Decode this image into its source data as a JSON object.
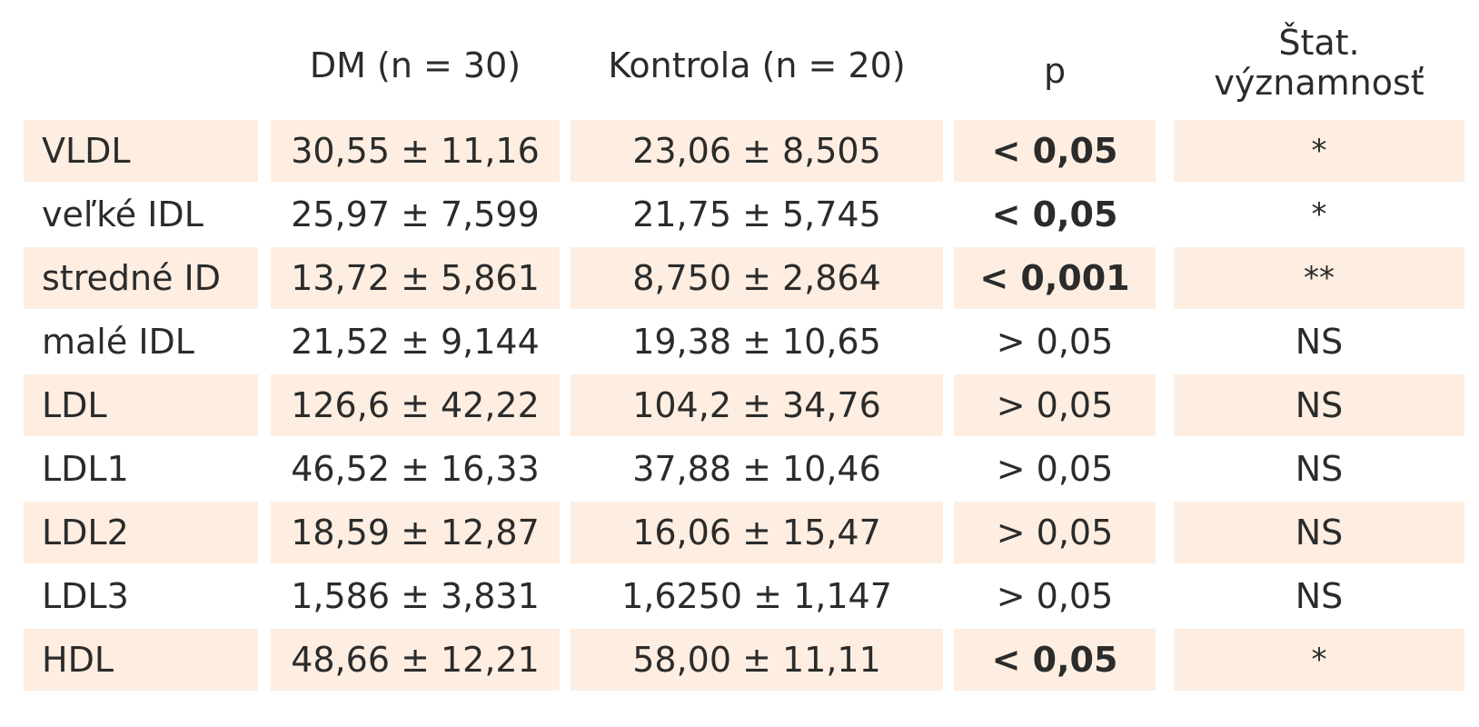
{
  "headers": {
    "label": "",
    "dm": "DM (n = 30)",
    "kontrola": "Kontrola (n = 20)",
    "p": "p",
    "stat_line1": "Štat.",
    "stat_line2": "významnosť"
  },
  "colors": {
    "row_shade": "#fdeee1",
    "text": "#2b2b2b"
  },
  "rows": [
    {
      "label": "VLDL",
      "dm": "30,55 ± 11,16",
      "kontrola": "23,06 ± 8,505",
      "p": "< 0,05",
      "p_bold": true,
      "stat": "*",
      "shaded": true
    },
    {
      "label": "veľké IDL",
      "dm": "25,97 ± 7,599",
      "kontrola": "21,75 ± 5,745",
      "p": "< 0,05",
      "p_bold": true,
      "stat": "*",
      "shaded": false
    },
    {
      "label": "stredné ID",
      "dm": "13,72 ± 5,861",
      "kontrola": "8,750 ± 2,864",
      "p": "< 0,001",
      "p_bold": true,
      "stat": "**",
      "shaded": true
    },
    {
      "label": "malé IDL",
      "dm": "21,52 ± 9,144",
      "kontrola": "19,38 ± 10,65",
      "p": "> 0,05",
      "p_bold": false,
      "stat": "NS",
      "shaded": false
    },
    {
      "label": "LDL",
      "dm": "126,6 ± 42,22",
      "kontrola": "104,2 ± 34,76",
      "p": "> 0,05",
      "p_bold": false,
      "stat": "NS",
      "shaded": true
    },
    {
      "label": "LDL1",
      "dm": "46,52 ± 16,33",
      "kontrola": "37,88 ± 10,46",
      "p": "> 0,05",
      "p_bold": false,
      "stat": "NS",
      "shaded": false
    },
    {
      "label": "LDL2",
      "dm": "18,59 ± 12,87",
      "kontrola": "16,06 ± 15,47",
      "p": "> 0,05",
      "p_bold": false,
      "stat": "NS",
      "shaded": true
    },
    {
      "label": "LDL3",
      "dm": "1,586 ± 3,831",
      "kontrola": "1,6250 ± 1,147",
      "p": "> 0,05",
      "p_bold": false,
      "stat": "NS",
      "shaded": false
    },
    {
      "label": "HDL",
      "dm": "48,66 ± 12,21",
      "kontrola": "58,00 ± 11,11",
      "p": "< 0,05",
      "p_bold": true,
      "stat": "*",
      "shaded": true
    }
  ]
}
